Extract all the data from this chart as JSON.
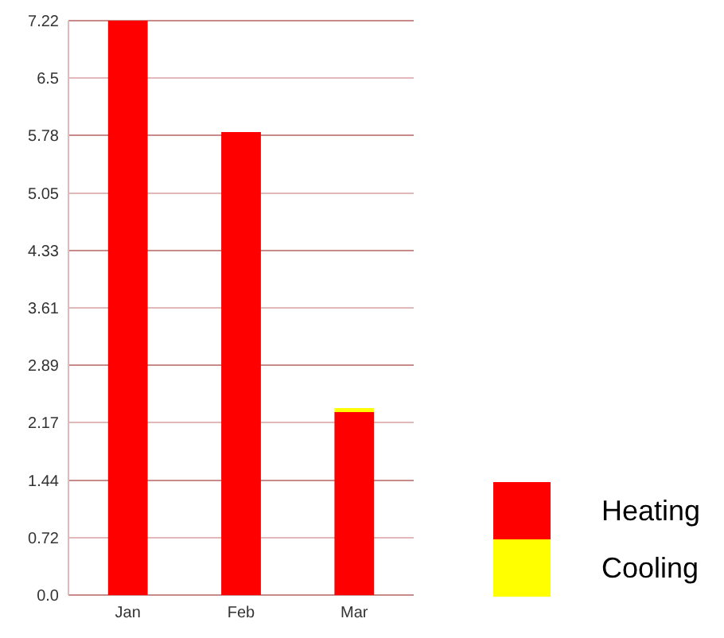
{
  "chart_data": {
    "type": "bar",
    "stacked": true,
    "categories": [
      "Jan",
      "Feb",
      "Mar"
    ],
    "series": [
      {
        "name": "Heating",
        "color": "#ff0000",
        "values": [
          7.22,
          5.82,
          2.3
        ]
      },
      {
        "name": "Cooling",
        "color": "#ffff00",
        "values": [
          0,
          0,
          0.05
        ]
      }
    ],
    "ylim": [
      0,
      7.22
    ],
    "yticks": [
      {
        "value": 0,
        "label": "0.0"
      },
      0.72,
      1.44,
      2.17,
      2.89,
      3.61,
      4.33,
      5.05,
      5.78,
      6.5,
      7.22
    ],
    "grid": "y",
    "legend": "right"
  }
}
